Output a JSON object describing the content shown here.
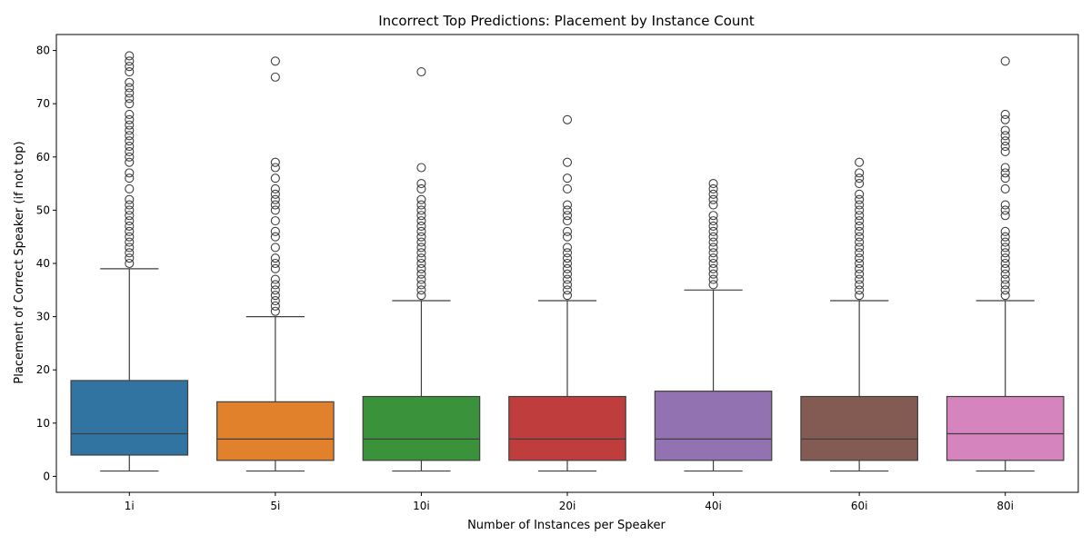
{
  "chart_data": {
    "type": "box",
    "title": "Incorrect Top Predictions: Placement by Instance Count",
    "xlabel": "Number of Instances per Speaker",
    "ylabel": "Placement of Correct Speaker (if not top)",
    "ylim": [
      -3,
      83
    ],
    "yticks": [
      0,
      10,
      20,
      30,
      40,
      50,
      60,
      70,
      80
    ],
    "grid": false,
    "categories": [
      "1i",
      "5i",
      "10i",
      "20i",
      "40i",
      "60i",
      "80i"
    ],
    "series": [
      {
        "category": "1i",
        "color": "#3274a1",
        "whisker_low": 1,
        "q1": 4,
        "median": 8,
        "q3": 18,
        "whisker_high": 39,
        "outliers": [
          40,
          41,
          42,
          43,
          44,
          45,
          46,
          47,
          48,
          49,
          50,
          51,
          52,
          54,
          56,
          57,
          59,
          60,
          61,
          62,
          63,
          64,
          65,
          66,
          67,
          68,
          70,
          71,
          72,
          73,
          74,
          76,
          77,
          78,
          79
        ]
      },
      {
        "category": "5i",
        "color": "#e1812c",
        "whisker_low": 1,
        "q1": 3,
        "median": 7,
        "q3": 14,
        "whisker_high": 30,
        "outliers": [
          31,
          32,
          33,
          34,
          35,
          36,
          37,
          39,
          40,
          41,
          43,
          45,
          46,
          48,
          50,
          51,
          52,
          53,
          54,
          56,
          58,
          59,
          75,
          78
        ]
      },
      {
        "category": "10i",
        "color": "#3a923a",
        "whisker_low": 1,
        "q1": 3,
        "median": 7,
        "q3": 15,
        "whisker_high": 33,
        "outliers": [
          34,
          35,
          36,
          37,
          38,
          39,
          40,
          41,
          42,
          43,
          44,
          45,
          46,
          47,
          48,
          49,
          50,
          51,
          52,
          54,
          55,
          58,
          76
        ]
      },
      {
        "category": "20i",
        "color": "#c03d3e",
        "whisker_low": 1,
        "q1": 3,
        "median": 7,
        "q3": 15,
        "whisker_high": 33,
        "outliers": [
          34,
          35,
          36,
          37,
          38,
          39,
          40,
          41,
          42,
          43,
          45,
          46,
          48,
          49,
          50,
          51,
          54,
          56,
          59,
          67
        ]
      },
      {
        "category": "40i",
        "color": "#9372b2",
        "whisker_low": 1,
        "q1": 3,
        "median": 7,
        "q3": 16,
        "whisker_high": 35,
        "outliers": [
          36,
          37,
          38,
          39,
          40,
          41,
          42,
          43,
          44,
          45,
          46,
          47,
          48,
          49,
          51,
          52,
          53,
          54,
          55
        ]
      },
      {
        "category": "60i",
        "color": "#845b53",
        "whisker_low": 1,
        "q1": 3,
        "median": 7,
        "q3": 15,
        "whisker_high": 33,
        "outliers": [
          34,
          35,
          36,
          37,
          38,
          39,
          40,
          41,
          42,
          43,
          44,
          45,
          46,
          47,
          48,
          49,
          50,
          51,
          52,
          53,
          55,
          56,
          57,
          59
        ]
      },
      {
        "category": "80i",
        "color": "#d684bd",
        "whisker_low": 1,
        "q1": 3,
        "median": 8,
        "q3": 15,
        "whisker_high": 33,
        "outliers": [
          34,
          35,
          36,
          37,
          38,
          39,
          40,
          41,
          42,
          43,
          44,
          45,
          46,
          49,
          50,
          51,
          54,
          56,
          57,
          58,
          61,
          62,
          63,
          64,
          65,
          67,
          68,
          78
        ]
      }
    ]
  }
}
